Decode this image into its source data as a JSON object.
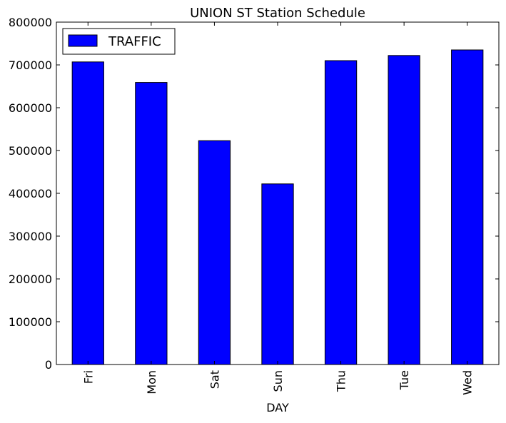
{
  "chart_data": {
    "type": "bar",
    "title": "UNION ST Station Schedule",
    "xlabel": "DAY",
    "ylabel": "",
    "categories": [
      "Fri",
      "Mon",
      "Sat",
      "Sun",
      "Thu",
      "Tue",
      "Wed"
    ],
    "series": [
      {
        "name": "TRAFFIC",
        "values": [
          707000,
          659000,
          523000,
          422000,
          710000,
          722000,
          735000
        ],
        "color": "#0000ff"
      }
    ],
    "ylim": [
      0,
      800000
    ],
    "yticks": [
      0,
      100000,
      200000,
      300000,
      400000,
      500000,
      600000,
      700000,
      800000
    ],
    "ytick_labels": [
      "0",
      "100000",
      "200000",
      "300000",
      "400000",
      "500000",
      "600000",
      "700000",
      "800000"
    ],
    "grid": false,
    "legend": "top-left",
    "x_tick_rotation": "vertical"
  }
}
